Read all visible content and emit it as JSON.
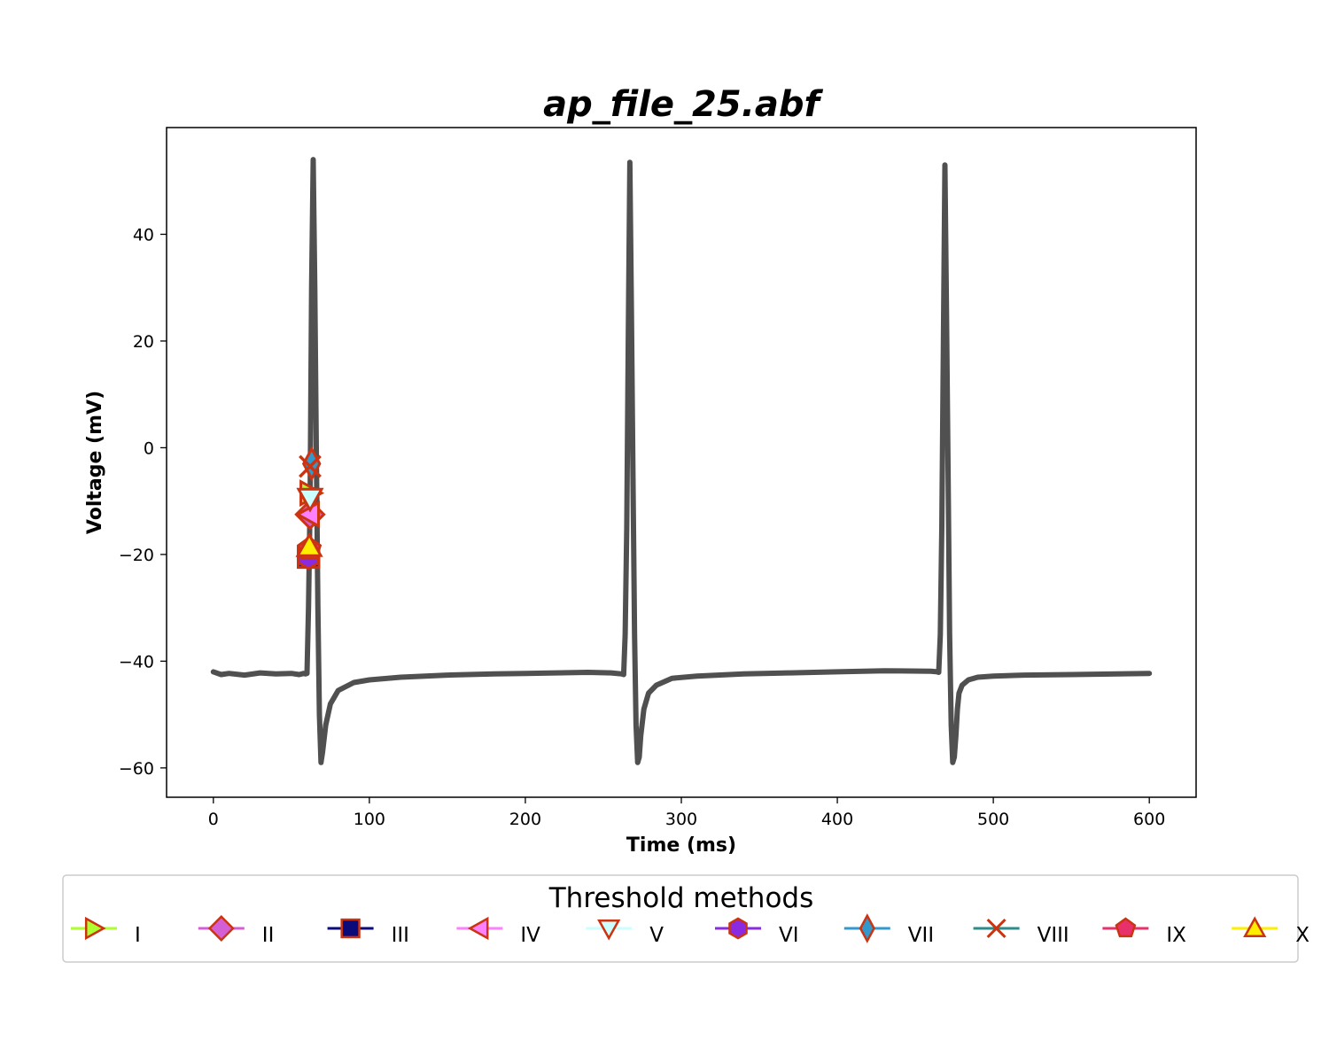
{
  "chart_data": {
    "type": "line",
    "title": "ap_file_25.abf",
    "xlabel": "Time (ms)",
    "ylabel": "Voltage (mV)",
    "xlim": [
      -30,
      630
    ],
    "ylim": [
      -65.5,
      60
    ],
    "xticks": [
      0,
      100,
      200,
      300,
      400,
      500,
      600
    ],
    "yticks": [
      -60,
      -40,
      -20,
      0,
      20,
      40
    ],
    "grid": false,
    "trace": {
      "color": "#505050",
      "x": [
        0,
        5,
        10,
        20,
        30,
        40,
        50,
        55,
        58,
        59,
        60,
        61,
        62,
        63,
        64,
        65,
        66,
        67,
        68,
        69,
        70,
        72,
        75,
        80,
        90,
        100,
        120,
        150,
        180,
        200,
        220,
        240,
        255,
        262,
        263,
        264,
        265,
        266,
        267,
        268,
        269,
        270,
        271,
        272,
        273,
        274,
        276,
        279,
        284,
        294,
        310,
        340,
        370,
        400,
        430,
        460,
        464,
        465,
        466,
        467,
        468,
        469,
        470,
        471,
        472,
        473,
        474,
        475,
        476,
        477,
        478,
        480,
        484,
        490,
        500,
        520,
        550,
        580,
        600
      ],
      "y": [
        -42,
        -42.5,
        -42.3,
        -42.6,
        -42.2,
        -42.4,
        -42.3,
        -42.5,
        -42.3,
        -42.4,
        -42.3,
        -30,
        -10,
        30,
        54,
        30,
        0,
        -30,
        -50,
        -59,
        -57,
        -52,
        -48,
        -45.5,
        -44,
        -43.5,
        -43,
        -42.6,
        -42.4,
        -42.3,
        -42.2,
        -42.1,
        -42.2,
        -42.4,
        -42.5,
        -35,
        -15,
        20,
        53.5,
        25,
        -5,
        -35,
        -52,
        -59,
        -58,
        -54,
        -49,
        -46,
        -44.5,
        -43.2,
        -42.8,
        -42.4,
        -42.2,
        -42,
        -41.8,
        -41.9,
        -42,
        -42.1,
        -35,
        -15,
        20,
        53,
        25,
        -5,
        -35,
        -52,
        -59,
        -58,
        -54,
        -49,
        -46,
        -44.5,
        -43.5,
        -43,
        -42.8,
        -42.6,
        -42.5,
        -42.4,
        -42.3
      ]
    },
    "threshold_markers": [
      {
        "name": "I",
        "x": 62,
        "y": -8.5,
        "marker": "triangle-right",
        "color": "#adff2f",
        "edge": "#cc3311"
      },
      {
        "name": "II",
        "x": 62,
        "y": -12.5,
        "marker": "diamond",
        "color": "#d45ed4",
        "edge": "#cc3311"
      },
      {
        "name": "III",
        "x": 61,
        "y": -20.5,
        "marker": "square",
        "color": "#0a0a7a",
        "edge": "#cc3311"
      },
      {
        "name": "IV",
        "x": 61.5,
        "y": -12.5,
        "marker": "triangle-left",
        "color": "#ff80ff",
        "edge": "#cc3311"
      },
      {
        "name": "V",
        "x": 62,
        "y": -9.5,
        "marker": "triangle-down",
        "color": "#ccffff",
        "edge": "#cc3311"
      },
      {
        "name": "VI",
        "x": 61,
        "y": -20.5,
        "marker": "hexagon",
        "color": "#8a2be2",
        "edge": "#cc3311"
      },
      {
        "name": "VII",
        "x": 63,
        "y": -3,
        "marker": "thin-diamond",
        "color": "#3399cc",
        "edge": "#cc3311"
      },
      {
        "name": "VIII",
        "x": 62,
        "y": -3.5,
        "marker": "x",
        "color": "#2e8b8b",
        "edge": "#cc3311"
      },
      {
        "name": "IX",
        "x": 61.5,
        "y": -19,
        "marker": "pentagon",
        "color": "#e8306a",
        "edge": "#cc3311"
      },
      {
        "name": "X",
        "x": 61.5,
        "y": -18.5,
        "marker": "triangle-up",
        "color": "#ffee00",
        "edge": "#cc3311"
      }
    ],
    "legend": {
      "title": "Threshold methods",
      "placement": "bottom",
      "entries": [
        {
          "label": "I",
          "line_color": "#adff2f"
        },
        {
          "label": "II",
          "line_color": "#d45ed4"
        },
        {
          "label": "III",
          "line_color": "#0a0a7a"
        },
        {
          "label": "IV",
          "line_color": "#ff80ff"
        },
        {
          "label": "V",
          "line_color": "#ccffff"
        },
        {
          "label": "VI",
          "line_color": "#8a2be2"
        },
        {
          "label": "VII",
          "line_color": "#3399cc"
        },
        {
          "label": "VIII",
          "line_color": "#2e8b8b"
        },
        {
          "label": "IX",
          "line_color": "#e8306a"
        },
        {
          "label": "X",
          "line_color": "#ffee00"
        }
      ]
    }
  }
}
